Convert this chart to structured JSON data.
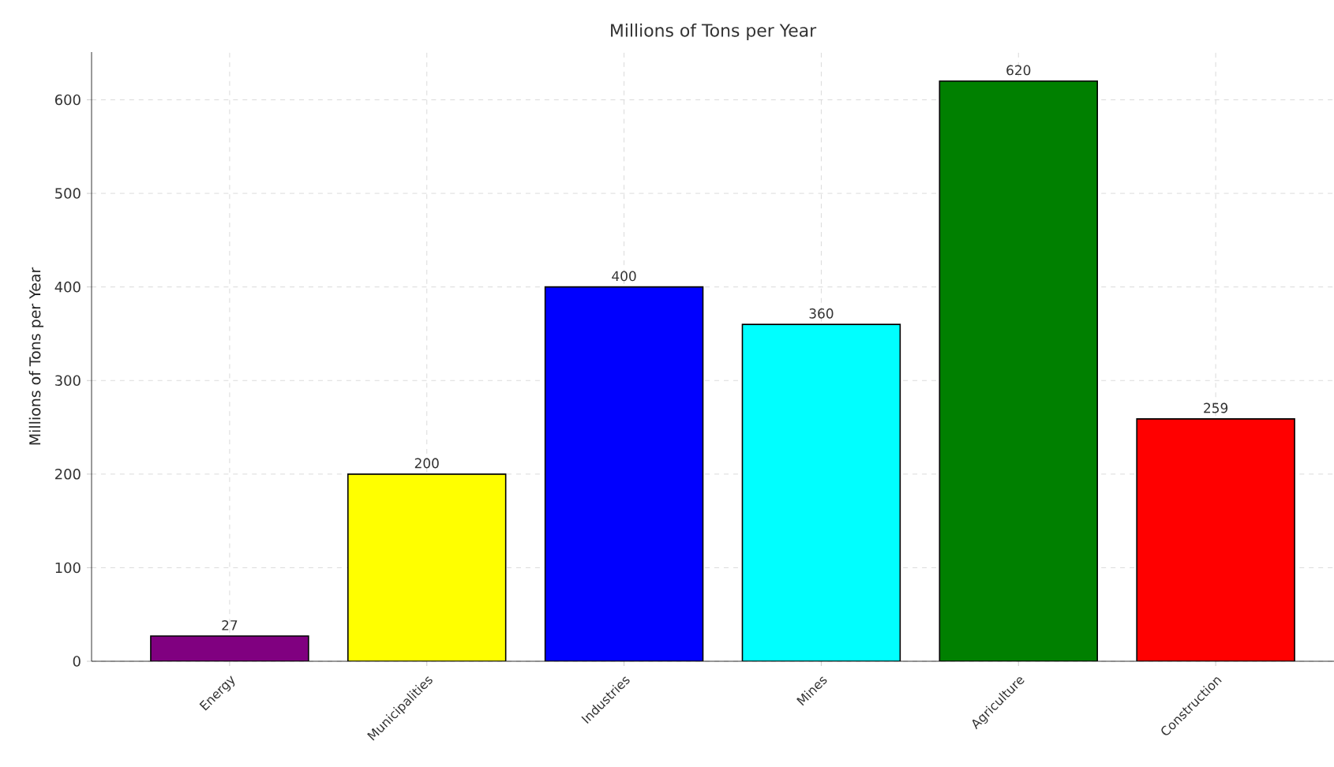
{
  "chart_data": {
    "type": "bar",
    "title": "Millions of Tons per Year",
    "ylabel": "Millions of Tons per Year",
    "categories": [
      "Energy",
      "Municipalities",
      "Industries",
      "Mines",
      "Agriculture",
      "Construction"
    ],
    "values": [
      27,
      200,
      400,
      360,
      620,
      259
    ],
    "colors": [
      "#800080",
      "#ffff00",
      "#0000ff",
      "#00ffff",
      "#008000",
      "#ff0000"
    ],
    "ylim": [
      0,
      651
    ],
    "yticks": [
      0,
      100,
      200,
      300,
      400,
      500,
      600
    ],
    "grid": true,
    "data_labels": true
  }
}
